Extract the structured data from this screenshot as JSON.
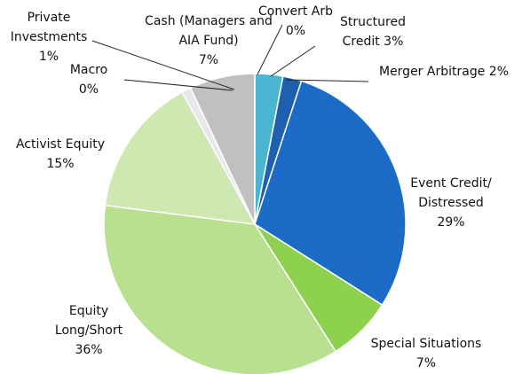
{
  "chart_data": {
    "type": "pie",
    "categories": [
      "Convert Arb",
      "Structured Credit",
      "Merger Arbitrage",
      "Event Credit/ Distressed",
      "Special Situations",
      "Equity Long/Short",
      "Activist Equity",
      "Macro",
      "Private Investments",
      "Cash (Managers and AIA Fund)"
    ],
    "values": [
      0,
      3,
      2,
      29,
      7,
      36,
      15,
      0,
      1,
      7
    ],
    "value_labels": [
      "0%",
      "3%",
      "2%",
      "29%",
      "7%",
      "36%",
      "15%",
      "0%",
      "1%",
      "7%"
    ],
    "colors": [
      "#8fd3e6",
      "#4bb5cf",
      "#1f5fb0",
      "#1b6bc7",
      "#8ed14f",
      "#b8e08f",
      "#cde8b0",
      "#d9d9d9",
      "#e8e8e8",
      "#c0c0c0"
    ]
  }
}
